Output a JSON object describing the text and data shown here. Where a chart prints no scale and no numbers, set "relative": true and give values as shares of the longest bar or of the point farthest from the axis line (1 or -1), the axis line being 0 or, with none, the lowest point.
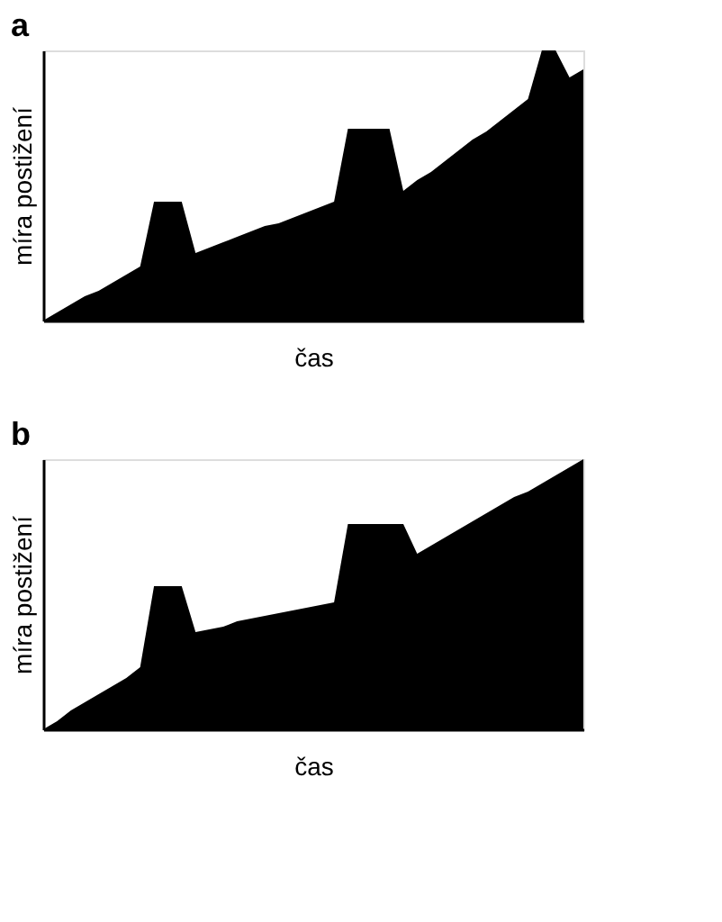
{
  "chart_data": [
    {
      "type": "area",
      "title": "a",
      "xlabel": "čas",
      "ylabel": "míra postižení",
      "relative": true,
      "categories": [
        null,
        null,
        null,
        null,
        null,
        null,
        null,
        null,
        null,
        null,
        null,
        null,
        null,
        null,
        null,
        null,
        null,
        null,
        null,
        null,
        null,
        null,
        null,
        null,
        null,
        null,
        null,
        null,
        null,
        null,
        null,
        null,
        null,
        null,
        null,
        null,
        null,
        null,
        null,
        null
      ],
      "series": [
        {
          "color": "#000000",
          "values": [
            0,
            0.03,
            0.06,
            0.09,
            0.11,
            0.14,
            0.17,
            0.2,
            0.44,
            0.44,
            0.44,
            0.25,
            0.27,
            0.29,
            0.31,
            0.33,
            0.35,
            0.36,
            0.38,
            0.4,
            0.42,
            0.44,
            0.71,
            0.71,
            0.71,
            0.71,
            0.48,
            0.52,
            0.55,
            0.59,
            0.63,
            0.67,
            0.7,
            0.74,
            0.78,
            0.82,
            1.0,
            1.0,
            0.9,
            0.93
          ]
        }
      ]
    },
    {
      "type": "area",
      "title": "b",
      "xlabel": "čas",
      "ylabel": "míra postižení",
      "relative": true,
      "categories": [
        null,
        null,
        null,
        null,
        null,
        null,
        null,
        null,
        null,
        null,
        null,
        null,
        null,
        null,
        null,
        null,
        null,
        null,
        null,
        null,
        null,
        null,
        null,
        null,
        null,
        null,
        null,
        null,
        null,
        null,
        null,
        null,
        null,
        null,
        null,
        null,
        null,
        null,
        null,
        null
      ],
      "series": [
        {
          "color": "#000000",
          "values": [
            0,
            0.03,
            0.07,
            0.1,
            0.13,
            0.16,
            0.19,
            0.23,
            0.53,
            0.53,
            0.53,
            0.36,
            0.37,
            0.38,
            0.4,
            0.41,
            0.42,
            0.43,
            0.44,
            0.45,
            0.46,
            0.47,
            0.76,
            0.76,
            0.76,
            0.76,
            0.76,
            0.65,
            0.68,
            0.71,
            0.74,
            0.77,
            0.8,
            0.83,
            0.86,
            0.88,
            0.91,
            0.94,
            0.97,
            1.0
          ]
        }
      ]
    }
  ]
}
